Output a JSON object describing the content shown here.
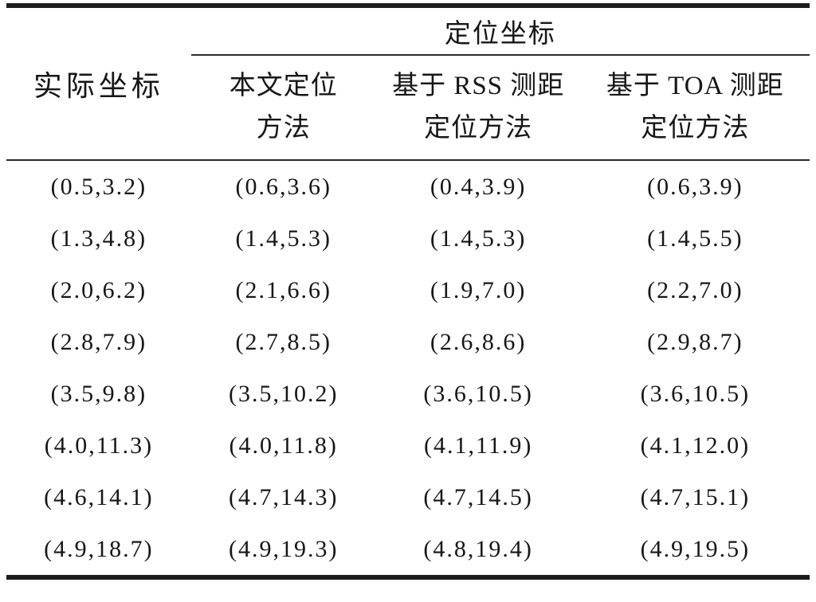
{
  "table": {
    "group_header": "定位坐标",
    "col1_header": "实际坐标",
    "method_headers": [
      {
        "line1": "本文定位",
        "line2": "方法"
      },
      {
        "line1": "基于 RSS 测距",
        "line2": "定位方法"
      },
      {
        "line1": "基于 TOA 测距",
        "line2": "定位方法"
      }
    ],
    "rows": [
      {
        "actual": "(0.5,3.2)",
        "proposed": "(0.6,3.6)",
        "rss": "(0.4,3.9)",
        "toa": "(0.6,3.9)"
      },
      {
        "actual": "(1.3,4.8)",
        "proposed": "(1.4,5.3)",
        "rss": "(1.4,5.3)",
        "toa": "(1.4,5.5)"
      },
      {
        "actual": "(2.0,6.2)",
        "proposed": "(2.1,6.6)",
        "rss": "(1.9,7.0)",
        "toa": "(2.2,7.0)"
      },
      {
        "actual": "(2.8,7.9)",
        "proposed": "(2.7,8.5)",
        "rss": "(2.6,8.6)",
        "toa": "(2.9,8.7)"
      },
      {
        "actual": "(3.5,9.8)",
        "proposed": "(3.5,10.2)",
        "rss": "(3.6,10.5)",
        "toa": "(3.6,10.5)"
      },
      {
        "actual": "(4.0,11.3)",
        "proposed": "(4.0,11.8)",
        "rss": "(4.1,11.9)",
        "toa": "(4.1,12.0)"
      },
      {
        "actual": "(4.6,14.1)",
        "proposed": "(4.7,14.3)",
        "rss": "(4.7,14.5)",
        "toa": "(4.7,15.1)"
      },
      {
        "actual": "(4.9,18.7)",
        "proposed": "(4.9,19.3)",
        "rss": "(4.8,19.4)",
        "toa": "(4.9,19.5)"
      }
    ]
  },
  "chart_data": {
    "type": "table",
    "title": "定位坐标",
    "columns": [
      "实际坐标",
      "本文定位方法",
      "基于 RSS 测距定位方法",
      "基于 TOA 测距定位方法"
    ],
    "group_header": {
      "label": "定位坐标",
      "spans_columns": [
        "本文定位方法",
        "基于 RSS 测距定位方法",
        "基于 TOA 测距定位方法"
      ]
    },
    "rows_numeric": [
      {
        "actual": [
          0.5,
          3.2
        ],
        "proposed": [
          0.6,
          3.6
        ],
        "rss": [
          0.4,
          3.9
        ],
        "toa": [
          0.6,
          3.9
        ]
      },
      {
        "actual": [
          1.3,
          4.8
        ],
        "proposed": [
          1.4,
          5.3
        ],
        "rss": [
          1.4,
          5.3
        ],
        "toa": [
          1.4,
          5.5
        ]
      },
      {
        "actual": [
          2.0,
          6.2
        ],
        "proposed": [
          2.1,
          6.6
        ],
        "rss": [
          1.9,
          7.0
        ],
        "toa": [
          2.2,
          7.0
        ]
      },
      {
        "actual": [
          2.8,
          7.9
        ],
        "proposed": [
          2.7,
          8.5
        ],
        "rss": [
          2.6,
          8.6
        ],
        "toa": [
          2.9,
          8.7
        ]
      },
      {
        "actual": [
          3.5,
          9.8
        ],
        "proposed": [
          3.5,
          10.2
        ],
        "rss": [
          3.6,
          10.5
        ],
        "toa": [
          3.6,
          10.5
        ]
      },
      {
        "actual": [
          4.0,
          11.3
        ],
        "proposed": [
          4.0,
          11.8
        ],
        "rss": [
          4.1,
          11.9
        ],
        "toa": [
          4.1,
          12.0
        ]
      },
      {
        "actual": [
          4.6,
          14.1
        ],
        "proposed": [
          4.7,
          14.3
        ],
        "rss": [
          4.7,
          14.5
        ],
        "toa": [
          4.7,
          15.1
        ]
      },
      {
        "actual": [
          4.9,
          18.7
        ],
        "proposed": [
          4.9,
          19.3
        ],
        "rss": [
          4.8,
          19.4
        ],
        "toa": [
          4.9,
          19.5
        ]
      }
    ],
    "text_color": "#161616",
    "rule_color": "#1c1c1c",
    "background": "#ffffff"
  }
}
